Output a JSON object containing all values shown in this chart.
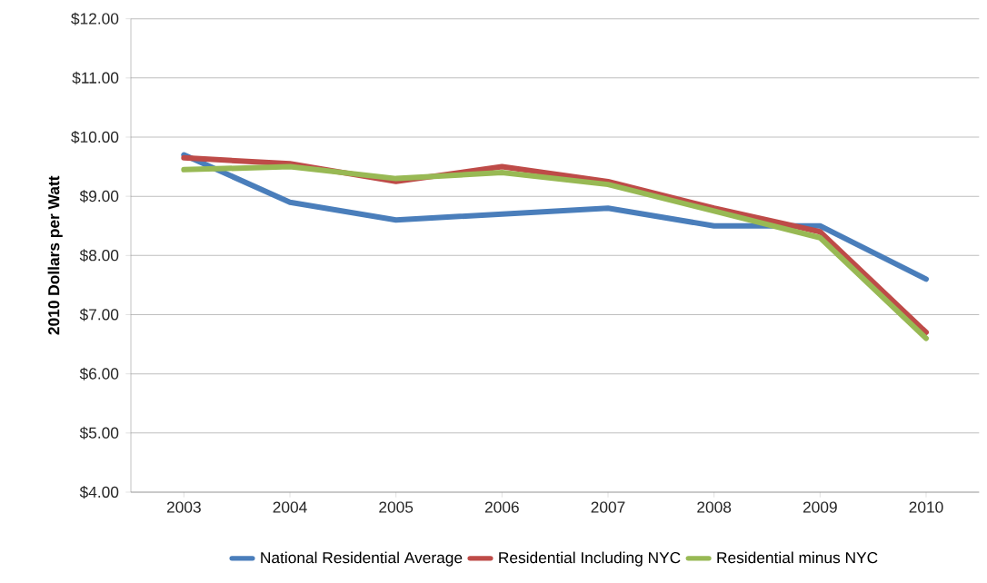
{
  "chart_data": {
    "type": "line",
    "ylabel": "2010 Dollars per Watt",
    "categories": [
      "2003",
      "2004",
      "2005",
      "2006",
      "2007",
      "2008",
      "2009",
      "2010"
    ],
    "series": [
      {
        "name": "National Residential Average",
        "color": "#4a7ebb",
        "values": [
          9.7,
          8.9,
          8.6,
          8.7,
          8.8,
          8.5,
          8.5,
          7.6
        ]
      },
      {
        "name": "Residential Including NYC",
        "color": "#be4b48",
        "values": [
          9.65,
          9.55,
          9.25,
          9.5,
          9.25,
          8.8,
          8.4,
          6.7
        ]
      },
      {
        "name": "Residential minus NYC",
        "color": "#98b954",
        "values": [
          9.45,
          9.5,
          9.3,
          9.4,
          9.2,
          8.75,
          8.3,
          6.6
        ]
      }
    ],
    "ylim": [
      4,
      12
    ],
    "yticks": [
      {
        "value": 4,
        "label": "$4.00"
      },
      {
        "value": 5,
        "label": "$5.00"
      },
      {
        "value": 6,
        "label": "$6.00"
      },
      {
        "value": 7,
        "label": "$7.00"
      },
      {
        "value": 8,
        "label": "$8.00"
      },
      {
        "value": 9,
        "label": "$9.00"
      },
      {
        "value": 10,
        "label": "$10.00"
      },
      {
        "value": 11,
        "label": "$11.00"
      },
      {
        "value": 12,
        "label": "$12.00"
      }
    ],
    "grid": "y",
    "legend": "bottom",
    "marker": "none",
    "line_style": "solid"
  }
}
